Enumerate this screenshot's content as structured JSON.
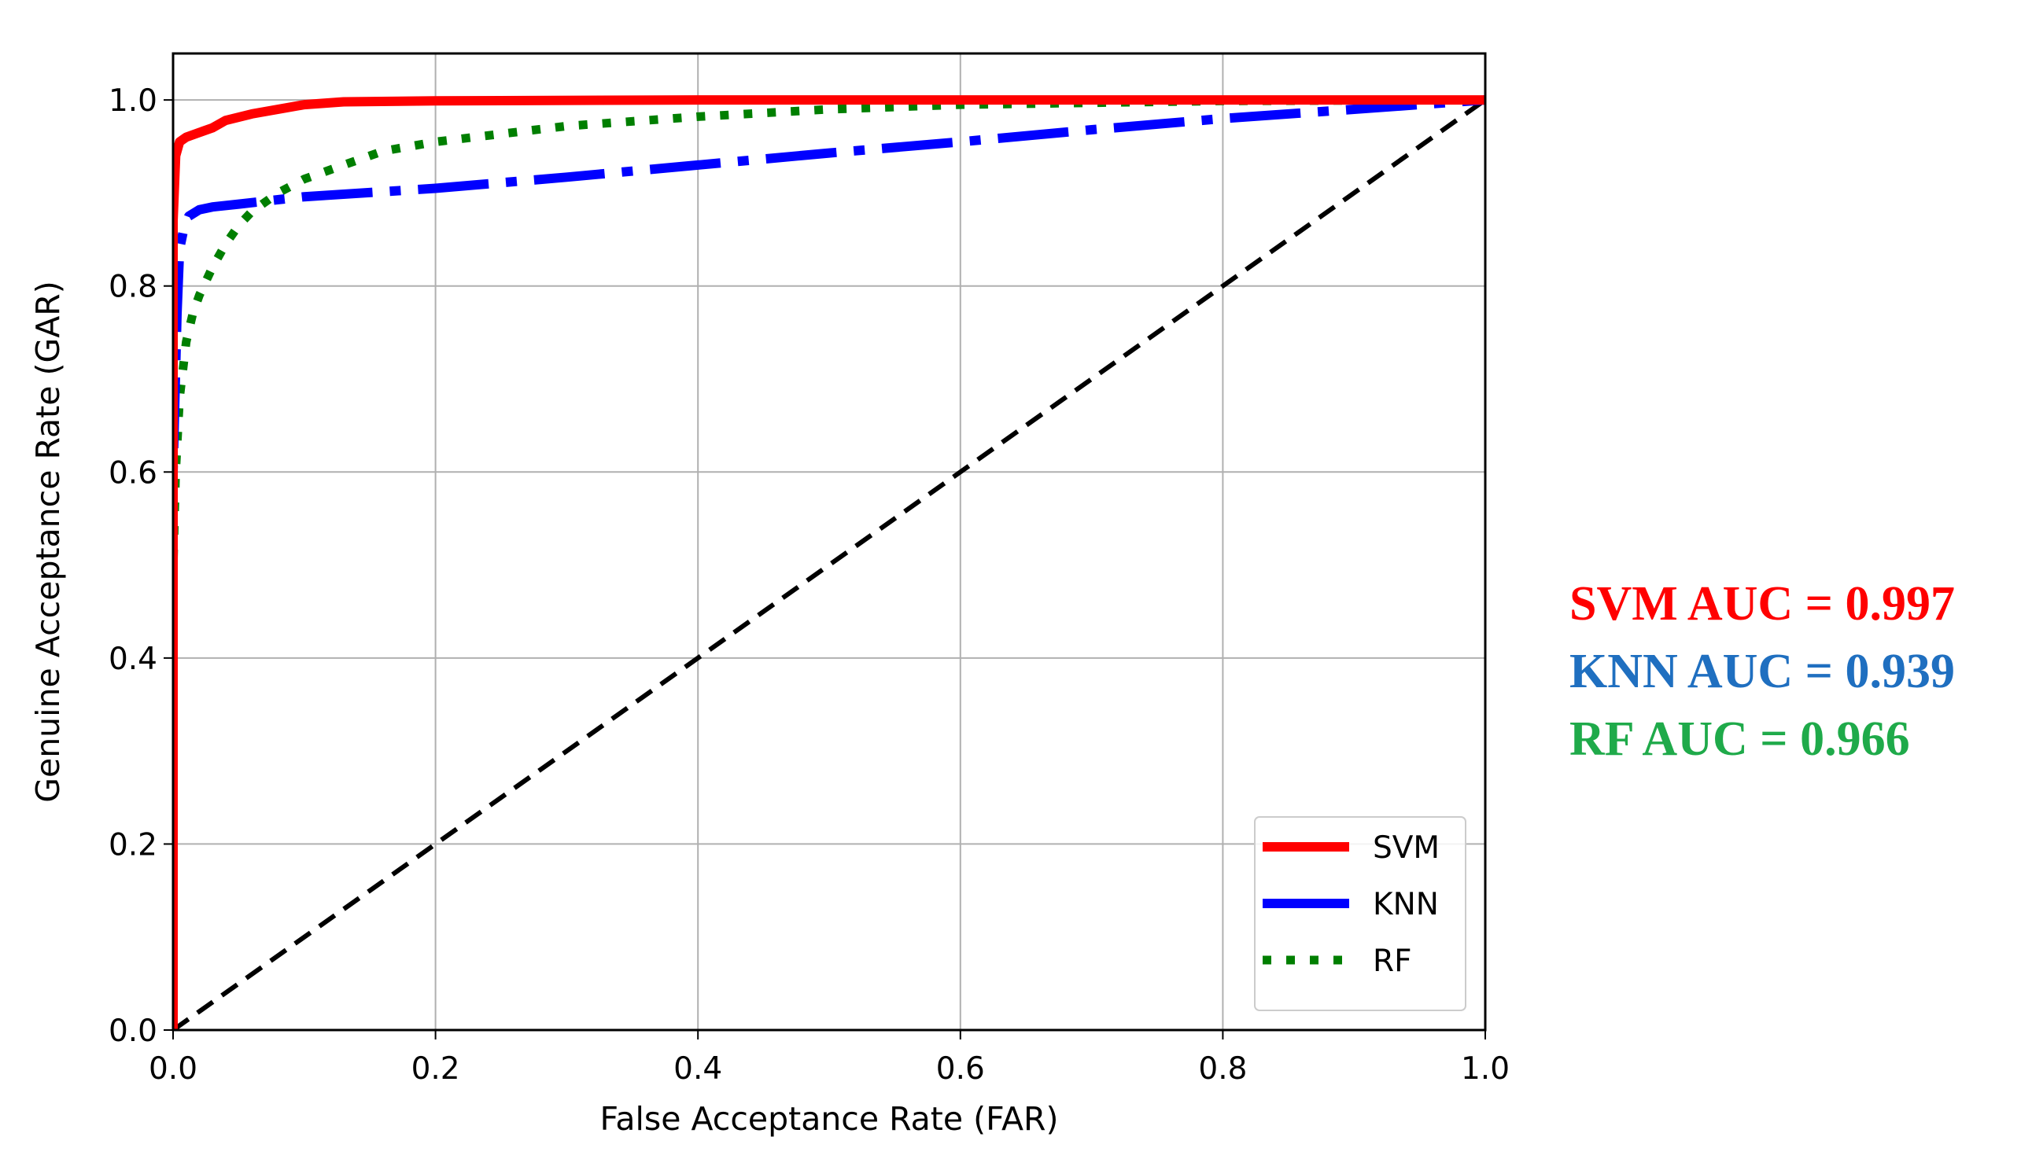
{
  "chart_data": {
    "type": "line",
    "title": "",
    "xlabel": "False Acceptance Rate (FAR)",
    "ylabel": "Genuine Acceptance Rate (GAR)",
    "xlim": [
      0.0,
      1.0
    ],
    "ylim": [
      0.0,
      1.05
    ],
    "xticks": [
      "0.0",
      "0.2",
      "0.4",
      "0.6",
      "0.8",
      "1.0"
    ],
    "yticks": [
      "0.0",
      "0.2",
      "0.4",
      "0.6",
      "0.8",
      "1.0"
    ],
    "grid": true,
    "legend_position": "lower-right",
    "series": [
      {
        "name": "SVM",
        "color": "#ff0000",
        "style": "solid",
        "x": [
          0,
          0,
          0.002,
          0.005,
          0.01,
          0.02,
          0.03,
          0.04,
          0.06,
          0.08,
          0.1,
          0.13,
          0.2,
          0.4,
          0.6,
          0.8,
          1.0
        ],
        "y": [
          0,
          0.87,
          0.94,
          0.955,
          0.96,
          0.965,
          0.97,
          0.978,
          0.985,
          0.99,
          0.995,
          0.998,
          0.999,
          1.0,
          1.0,
          1.0,
          1.0
        ]
      },
      {
        "name": "KNN",
        "color": "#0000ff",
        "style": "dashdot",
        "x": [
          0,
          0,
          0.003,
          0.005,
          0.008,
          0.012,
          0.02,
          0.03,
          0.05,
          0.1,
          0.2,
          0.3,
          0.4,
          0.5,
          0.6,
          0.7,
          0.8,
          0.9,
          1.0
        ],
        "y": [
          0,
          0.6,
          0.77,
          0.84,
          0.86,
          0.875,
          0.882,
          0.885,
          0.888,
          0.896,
          0.905,
          0.917,
          0.93,
          0.943,
          0.955,
          0.968,
          0.98,
          0.99,
          1.0
        ]
      },
      {
        "name": "RF",
        "color": "#007f00",
        "style": "dotted",
        "x": [
          0,
          0,
          0.002,
          0.005,
          0.01,
          0.015,
          0.02,
          0.03,
          0.04,
          0.05,
          0.06,
          0.08,
          0.1,
          0.13,
          0.16,
          0.2,
          0.3,
          0.4,
          0.5,
          0.6,
          0.8,
          1.0
        ],
        "y": [
          0,
          0.49,
          0.6,
          0.68,
          0.74,
          0.77,
          0.79,
          0.82,
          0.845,
          0.865,
          0.88,
          0.9,
          0.915,
          0.93,
          0.945,
          0.955,
          0.972,
          0.982,
          0.99,
          0.995,
          0.999,
          1.0
        ]
      },
      {
        "name": "",
        "color": "#000000",
        "style": "dashed",
        "x": [
          0,
          1.0
        ],
        "y": [
          0,
          1.0
        ]
      }
    ],
    "annotations": [
      {
        "text": "SVM AUC = 0.997",
        "color": "#ff0000"
      },
      {
        "text": "KNN AUC = 0.939",
        "color": "#1f6fc0"
      },
      {
        "text": "RF AUC = 0.966",
        "color": "#1faa4a"
      }
    ]
  }
}
